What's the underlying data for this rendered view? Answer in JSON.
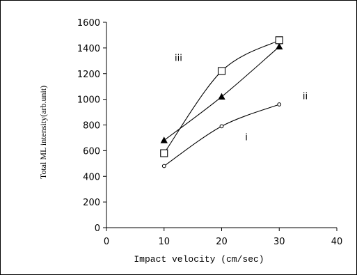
{
  "chart_data": {
    "type": "line",
    "title": "",
    "xlabel": "Impact velocity (cm/sec)",
    "ylabel": "Total ML intensity(arb.unit)",
    "xlim": [
      0,
      40
    ],
    "ylim": [
      0,
      1600
    ],
    "x_ticks": [
      "0",
      "10",
      "20",
      "30",
      "40"
    ],
    "y_ticks": [
      "0",
      "200",
      "400",
      "600",
      "800",
      "1000",
      "1200",
      "1400",
      "1600"
    ],
    "grid": false,
    "legend": "none",
    "series": [
      {
        "name": "i",
        "marker": "circle",
        "x": [
          10,
          20,
          30
        ],
        "y": [
          480,
          790,
          960
        ]
      },
      {
        "name": "ii",
        "marker": "triangle",
        "x": [
          10,
          20,
          30
        ],
        "y": [
          680,
          1020,
          1410
        ]
      },
      {
        "name": "iii",
        "marker": "square",
        "x": [
          10,
          20,
          30
        ],
        "y": [
          580,
          1220,
          1460
        ]
      }
    ]
  }
}
